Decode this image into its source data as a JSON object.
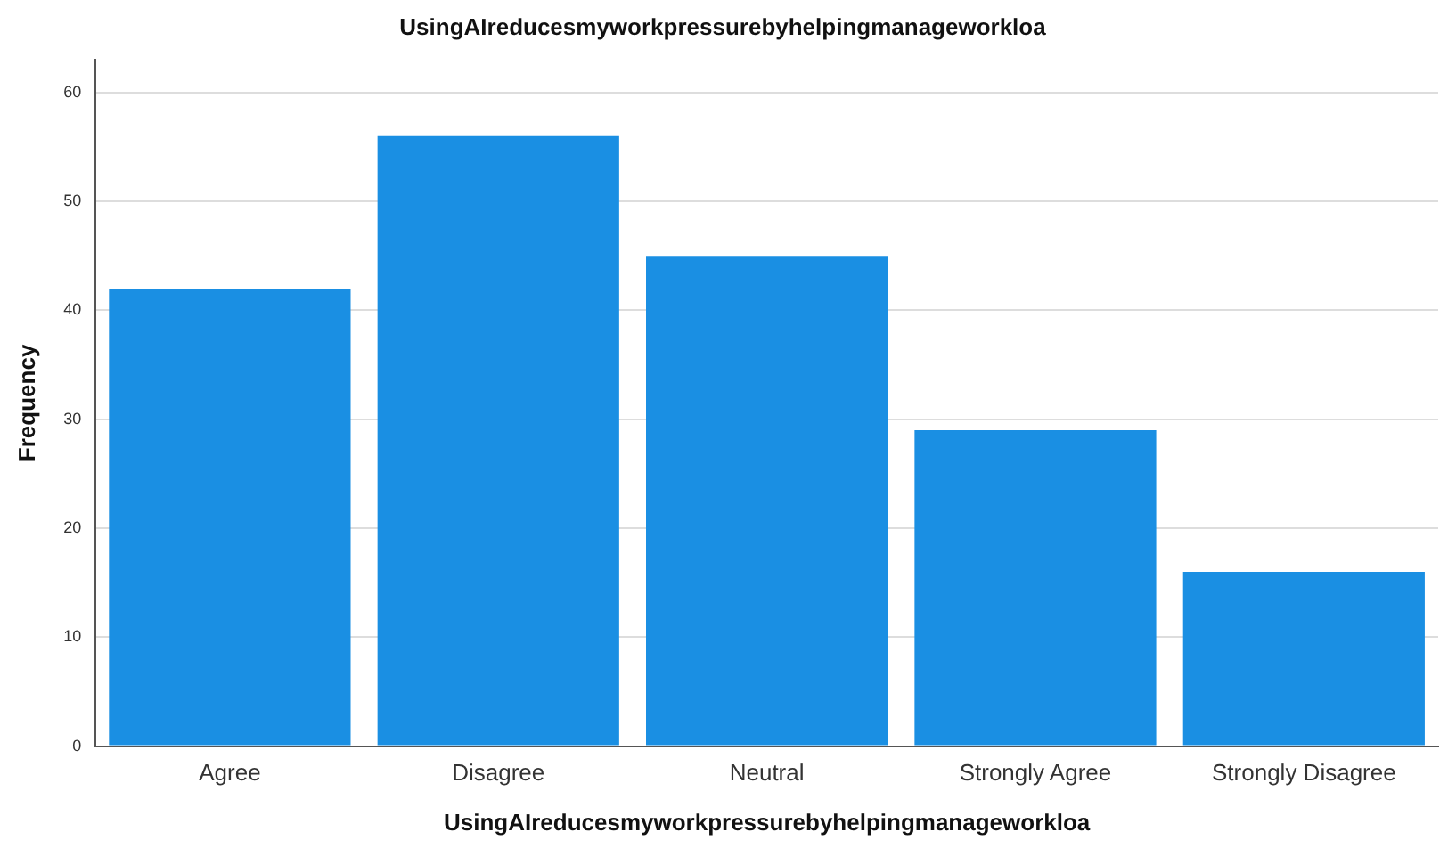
{
  "chart_data": {
    "type": "bar",
    "title": "UsingAIreducesmyworkpressurebyhelpingmanageworkloa",
    "xlabel": "UsingAIreducesmyworkpressurebyhelpingmanageworkloa",
    "ylabel": "Frequency",
    "categories": [
      "Agree",
      "Disagree",
      "Neutral",
      "Strongly Agree",
      "Strongly Disagree"
    ],
    "values": [
      42,
      56,
      45,
      29,
      16
    ],
    "color": "#1a8fe3",
    "ylim": [
      0,
      63
    ],
    "yticks": [
      0,
      10,
      20,
      30,
      40,
      50,
      60
    ],
    "grid": "y",
    "legend": false
  }
}
